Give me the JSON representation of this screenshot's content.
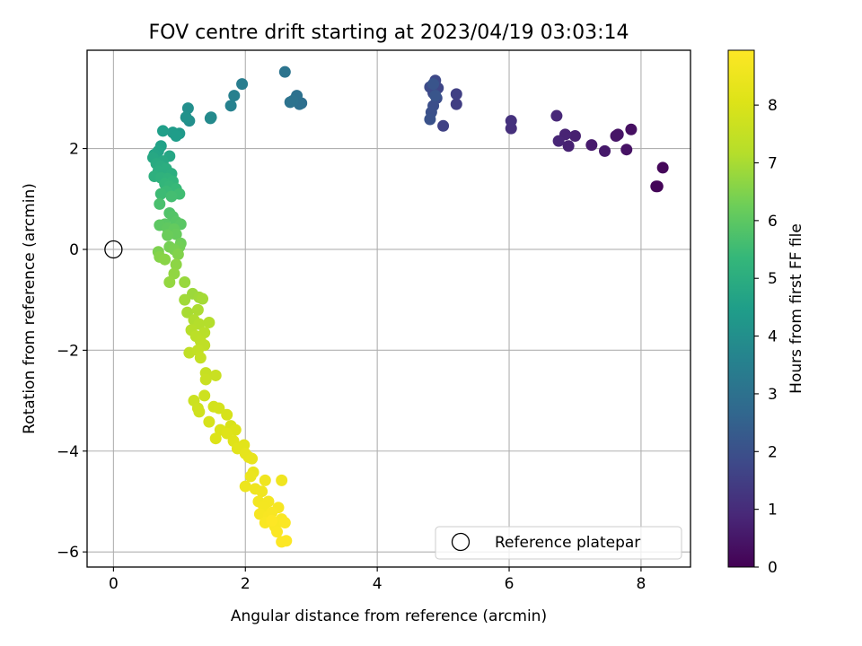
{
  "chart_data": {
    "type": "scatter",
    "title": "FOV centre drift starting at 2023/04/19 03:03:14",
    "xlabel": "Angular distance from reference (arcmin)",
    "ylabel": "Rotation from reference (arcmin)",
    "xlim": [
      -0.4,
      8.75
    ],
    "ylim": [
      -6.3,
      3.95
    ],
    "x_ticks": [
      0,
      2,
      4,
      6,
      8
    ],
    "y_ticks": [
      -6,
      -4,
      -2,
      0,
      2
    ],
    "grid": true,
    "legend": {
      "placement": "lower-right",
      "entries": [
        "Reference platepar"
      ]
    },
    "colorbar": {
      "label": "Hours from first FF file",
      "range": [
        0,
        8.95
      ],
      "ticks": [
        0,
        1,
        2,
        3,
        4,
        5,
        6,
        7,
        8
      ],
      "colormap": "viridis"
    },
    "reference_point": {
      "x": 0,
      "y": 0
    },
    "series": [
      {
        "points": [
          [
            8.25,
            1.25,
            0.1
          ],
          [
            8.23,
            1.25,
            0.1
          ],
          [
            8.33,
            1.62,
            0.15
          ],
          [
            7.85,
            2.38,
            0.35
          ],
          [
            7.78,
            1.98,
            0.4
          ],
          [
            7.65,
            2.28,
            0.45
          ],
          [
            7.62,
            2.25,
            0.45
          ],
          [
            7.45,
            1.95,
            0.55
          ],
          [
            7.25,
            2.07,
            0.6
          ],
          [
            7.0,
            2.25,
            0.7
          ],
          [
            6.9,
            2.05,
            0.75
          ],
          [
            6.85,
            2.28,
            0.8
          ],
          [
            6.75,
            2.15,
            0.85
          ],
          [
            6.72,
            2.65,
            0.9
          ],
          [
            6.03,
            2.4,
            1.1
          ],
          [
            6.03,
            2.55,
            1.15
          ],
          [
            5.2,
            2.88,
            1.5
          ],
          [
            5.2,
            3.08,
            1.55
          ],
          [
            5.0,
            2.45,
            1.6
          ],
          [
            4.92,
            3.2,
            1.7
          ],
          [
            4.88,
            3.35,
            1.75
          ],
          [
            4.85,
            3.1,
            1.8
          ],
          [
            4.8,
            3.22,
            1.85
          ],
          [
            4.9,
            3.0,
            1.9
          ],
          [
            4.85,
            2.85,
            1.95
          ],
          [
            4.82,
            2.72,
            2.0
          ],
          [
            4.8,
            2.58,
            2.05
          ],
          [
            4.85,
            3.28,
            2.1
          ],
          [
            4.88,
            3.05,
            2.15
          ],
          [
            2.85,
            2.9,
            2.9
          ],
          [
            2.82,
            2.88,
            2.95
          ],
          [
            2.78,
            3.05,
            3.0
          ],
          [
            2.72,
            2.95,
            3.05
          ],
          [
            2.68,
            2.92,
            3.05
          ],
          [
            2.6,
            3.52,
            3.1
          ],
          [
            1.95,
            3.28,
            3.4
          ],
          [
            1.83,
            3.05,
            3.5
          ],
          [
            1.78,
            2.85,
            3.55
          ],
          [
            1.48,
            2.62,
            3.8
          ],
          [
            1.47,
            2.6,
            3.85
          ],
          [
            1.15,
            2.55,
            4.0
          ],
          [
            1.13,
            2.8,
            4.0
          ],
          [
            1.1,
            2.62,
            4.1
          ],
          [
            1.0,
            2.3,
            4.3
          ],
          [
            0.9,
            2.32,
            4.4
          ],
          [
            0.95,
            2.25,
            4.45
          ],
          [
            0.75,
            2.35,
            4.5
          ],
          [
            0.72,
            2.05,
            4.6
          ],
          [
            0.68,
            1.95,
            4.65
          ],
          [
            0.62,
            1.88,
            4.7
          ],
          [
            0.85,
            1.85,
            4.75
          ],
          [
            0.6,
            1.82,
            4.8
          ],
          [
            0.75,
            1.75,
            4.85
          ],
          [
            0.65,
            1.7,
            4.9
          ],
          [
            0.72,
            1.65,
            4.95
          ],
          [
            0.8,
            1.6,
            5.0
          ],
          [
            0.68,
            1.55,
            5.0
          ],
          [
            0.88,
            1.5,
            5.05
          ],
          [
            0.62,
            1.45,
            5.1
          ],
          [
            0.72,
            1.42,
            5.15
          ],
          [
            0.82,
            1.4,
            5.2
          ],
          [
            0.9,
            1.35,
            5.25
          ],
          [
            0.78,
            1.3,
            5.3
          ],
          [
            0.85,
            1.25,
            5.35
          ],
          [
            0.95,
            1.2,
            5.4
          ],
          [
            0.8,
            1.15,
            5.45
          ],
          [
            0.72,
            1.1,
            5.5
          ],
          [
            1.0,
            1.1,
            5.55
          ],
          [
            0.88,
            1.05,
            5.6
          ],
          [
            0.7,
            0.9,
            5.7
          ],
          [
            0.85,
            0.72,
            5.8
          ],
          [
            0.9,
            0.65,
            5.85
          ],
          [
            0.95,
            0.55,
            5.9
          ],
          [
            1.02,
            0.5,
            5.95
          ],
          [
            0.78,
            0.5,
            5.95
          ],
          [
            0.7,
            0.48,
            6.0
          ],
          [
            0.82,
            0.42,
            6.05
          ],
          [
            0.92,
            0.4,
            6.1
          ],
          [
            0.95,
            0.3,
            6.15
          ],
          [
            0.82,
            0.28,
            6.2
          ],
          [
            1.02,
            0.12,
            6.25
          ],
          [
            1.0,
            0.05,
            6.3
          ],
          [
            0.85,
            0.05,
            6.35
          ],
          [
            0.92,
            0.0,
            6.4
          ],
          [
            0.68,
            -0.05,
            6.45
          ],
          [
            0.98,
            -0.1,
            6.5
          ],
          [
            0.7,
            -0.15,
            6.55
          ],
          [
            0.78,
            -0.2,
            6.6
          ],
          [
            0.95,
            -0.3,
            6.65
          ],
          [
            0.92,
            -0.48,
            6.7
          ],
          [
            0.85,
            -0.65,
            6.75
          ],
          [
            1.08,
            -0.65,
            6.8
          ],
          [
            1.2,
            -0.88,
            6.85
          ],
          [
            1.3,
            -0.95,
            6.9
          ],
          [
            1.08,
            -1.0,
            6.9
          ],
          [
            1.35,
            -0.98,
            6.95
          ],
          [
            1.12,
            -1.25,
            7.0
          ],
          [
            1.28,
            -1.2,
            7.05
          ],
          [
            1.22,
            -1.4,
            7.1
          ],
          [
            1.45,
            -1.45,
            7.15
          ],
          [
            1.3,
            -1.48,
            7.15
          ],
          [
            1.18,
            -1.6,
            7.2
          ],
          [
            1.38,
            -1.65,
            7.25
          ],
          [
            1.25,
            -1.72,
            7.3
          ],
          [
            1.32,
            -1.82,
            7.35
          ],
          [
            1.38,
            -1.9,
            7.4
          ],
          [
            1.15,
            -2.05,
            7.4
          ],
          [
            1.28,
            -2.0,
            7.45
          ],
          [
            1.32,
            -2.15,
            7.5
          ],
          [
            1.4,
            -2.45,
            7.55
          ],
          [
            1.4,
            -2.58,
            7.6
          ],
          [
            1.55,
            -2.5,
            7.6
          ],
          [
            1.22,
            -3.0,
            7.65
          ],
          [
            1.38,
            -2.9,
            7.7
          ],
          [
            1.28,
            -3.15,
            7.7
          ],
          [
            1.3,
            -3.22,
            7.75
          ],
          [
            1.52,
            -3.12,
            7.8
          ],
          [
            1.6,
            -3.15,
            7.85
          ],
          [
            1.45,
            -3.42,
            7.9
          ],
          [
            1.72,
            -3.28,
            7.9
          ],
          [
            1.78,
            -3.5,
            7.95
          ],
          [
            1.62,
            -3.58,
            8.0
          ],
          [
            1.85,
            -3.58,
            8.05
          ],
          [
            1.55,
            -3.75,
            8.05
          ],
          [
            1.72,
            -3.65,
            8.1
          ],
          [
            1.82,
            -3.8,
            8.15
          ],
          [
            1.98,
            -3.88,
            8.2
          ],
          [
            1.88,
            -3.95,
            8.2
          ],
          [
            2.0,
            -4.05,
            8.3
          ],
          [
            2.05,
            -4.12,
            8.3
          ],
          [
            2.1,
            -4.15,
            8.35
          ],
          [
            2.12,
            -4.42,
            8.4
          ],
          [
            2.08,
            -4.5,
            8.45
          ],
          [
            2.0,
            -4.7,
            8.5
          ],
          [
            2.15,
            -4.75,
            8.55
          ],
          [
            2.25,
            -4.8,
            8.6
          ],
          [
            2.3,
            -4.58,
            8.6
          ],
          [
            2.55,
            -4.58,
            8.6
          ],
          [
            2.2,
            -5.0,
            8.65
          ],
          [
            2.35,
            -5.0,
            8.7
          ],
          [
            2.28,
            -5.1,
            8.7
          ],
          [
            2.5,
            -5.12,
            8.75
          ],
          [
            2.22,
            -5.25,
            8.75
          ],
          [
            2.35,
            -5.3,
            8.8
          ],
          [
            2.4,
            -5.22,
            8.8
          ],
          [
            2.55,
            -5.35,
            8.85
          ],
          [
            2.3,
            -5.42,
            8.85
          ],
          [
            2.45,
            -5.5,
            8.85
          ],
          [
            2.6,
            -5.42,
            8.9
          ],
          [
            2.48,
            -5.6,
            8.9
          ],
          [
            2.55,
            -5.8,
            8.92
          ],
          [
            2.62,
            -5.78,
            8.93
          ],
          [
            2.4,
            -5.38,
            8.94
          ]
        ]
      }
    ]
  }
}
